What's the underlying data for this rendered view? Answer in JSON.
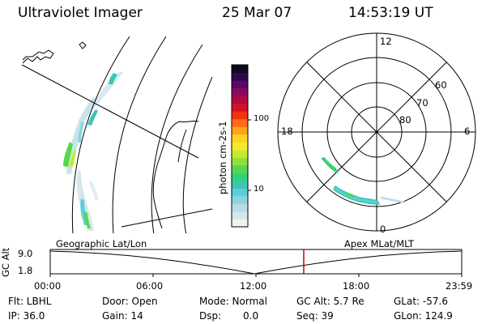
{
  "header": {
    "instrument": "Ultraviolet Imager",
    "date": "25 Mar 07",
    "time": "14:53:19 UT"
  },
  "colorbar": {
    "unit_label": "photon cm-2s-1",
    "ticks": [
      "100",
      "10"
    ],
    "colors": [
      "#f2f2f2",
      "#d6e6ee",
      "#b8dbe7",
      "#8fd3e2",
      "#5ccfd4",
      "#39c8b0",
      "#33d07a",
      "#55d84a",
      "#8ee03a",
      "#c6ea30",
      "#f2ea2e",
      "#ffd21f",
      "#ffa21a",
      "#ff6a14",
      "#f23012",
      "#d2102a",
      "#b00a44",
      "#8a0a5e",
      "#5a0a66",
      "#2a0a4a",
      "#0a0a20"
    ]
  },
  "polar": {
    "hour_labels": {
      "top": "12",
      "left": "18",
      "right": "6",
      "bottom": "0"
    },
    "lat_labels": [
      "60",
      "70",
      "80"
    ]
  },
  "timeline": {
    "ylabel": "GC Alt",
    "yticks": [
      "9.0",
      "1.8"
    ],
    "left_caption": "Geographic Lat/Lon",
    "right_caption": "Apex MLat/MLT",
    "xticks": [
      "00:00",
      "06:00",
      "12:00",
      "18:00",
      "23:59"
    ],
    "marker_color": "#cc0000"
  },
  "info": {
    "row1": [
      "Flt: LBHL",
      "Door: Open",
      "Mode: Normal",
      "GC Alt: 5.7 Re",
      "GLat: -57.6"
    ],
    "row2": [
      "IP: 36.0",
      "Gain: 14",
      "Dsp:",
      "0.0",
      "Seq: 39",
      "GLon: 124.9"
    ]
  }
}
